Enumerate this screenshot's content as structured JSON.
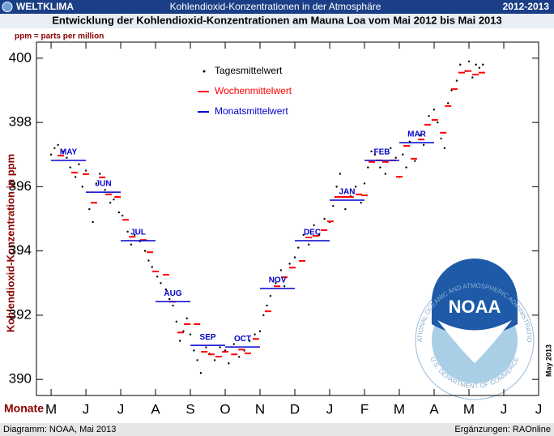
{
  "header": {
    "left": "WELTKLIMA",
    "center": "Kohlendioxid-Konzentrationen in der Atmosphäre",
    "right": "2012-2013"
  },
  "chart_data": {
    "type": "scatter",
    "title": "Entwicklung der Kohlendioxid-Konzentrationen am Mauna Loa vom Mai 2012 bis Mai 2013",
    "subtitle": "ppm = parts per million",
    "y_label": "Kohlendioxid-Konzentration in ppm",
    "x_label": "Monate",
    "note": "May 2013",
    "xlim": [
      -0.42,
      14.0
    ],
    "xticks": [
      {
        "value": 0,
        "label": "M"
      },
      {
        "value": 1,
        "label": "J"
      },
      {
        "value": 2,
        "label": "J"
      },
      {
        "value": 3,
        "label": "A"
      },
      {
        "value": 4,
        "label": "S"
      },
      {
        "value": 5,
        "label": "O"
      },
      {
        "value": 6,
        "label": "N"
      },
      {
        "value": 7,
        "label": "D"
      },
      {
        "value": 8,
        "label": "J"
      },
      {
        "value": 9,
        "label": "F"
      },
      {
        "value": 10,
        "label": "M"
      },
      {
        "value": 11,
        "label": "A"
      },
      {
        "value": 12,
        "label": "M"
      },
      {
        "value": 13,
        "label": "J"
      },
      {
        "value": 14,
        "label": "J"
      }
    ],
    "ylim": [
      389.5,
      400.5
    ],
    "yticks": [
      390,
      392,
      394,
      396,
      398,
      400
    ],
    "series": [
      {
        "name": "Tagesmittelwert",
        "color": "#000000",
        "style": "dot",
        "x": [
          0.0,
          0.1,
          0.2,
          0.35,
          0.45,
          0.55,
          0.7,
          0.8,
          0.9,
          1.0,
          1.1,
          1.2,
          1.3,
          1.4,
          1.55,
          1.7,
          1.8,
          1.95,
          2.05,
          2.2,
          2.3,
          2.4,
          2.55,
          2.7,
          2.8,
          2.9,
          3.05,
          3.15,
          3.3,
          3.4,
          3.5,
          3.6,
          3.7,
          3.8,
          3.9,
          4.0,
          4.1,
          4.2,
          4.3,
          4.45,
          4.55,
          4.7,
          4.85,
          5.0,
          5.1,
          5.25,
          5.4,
          5.55,
          5.7,
          5.85,
          6.0,
          6.1,
          6.2,
          6.3,
          6.45,
          6.6,
          6.7,
          6.85,
          7.0,
          7.1,
          7.25,
          7.4,
          7.55,
          7.7,
          7.85,
          8.0,
          8.1,
          8.2,
          8.3,
          8.45,
          8.6,
          8.75,
          8.9,
          9.0,
          9.1,
          9.2,
          9.3,
          9.45,
          9.6,
          9.75,
          9.9,
          10.0,
          10.1,
          10.2,
          10.3,
          10.45,
          10.6,
          10.7,
          10.85,
          11.0,
          11.1,
          11.2,
          11.3,
          11.4,
          11.5,
          11.65,
          11.75,
          11.9,
          12.0,
          12.1,
          12.2,
          12.3,
          12.4
        ],
        "values": [
          397.0,
          397.2,
          397.3,
          397.1,
          396.9,
          396.6,
          396.3,
          396.7,
          396.0,
          396.5,
          395.3,
          394.9,
          396.1,
          396.4,
          395.9,
          395.5,
          395.6,
          395.2,
          395.1,
          394.6,
          394.2,
          394.5,
          394.3,
          394.0,
          393.7,
          393.5,
          393.2,
          393.0,
          392.8,
          392.5,
          392.3,
          391.8,
          391.2,
          391.5,
          391.9,
          391.4,
          390.9,
          390.6,
          390.2,
          391.0,
          390.8,
          390.6,
          391.0,
          390.9,
          390.5,
          391.1,
          390.7,
          390.9,
          391.2,
          391.4,
          391.5,
          392.0,
          392.3,
          392.6,
          393.0,
          393.4,
          392.9,
          393.6,
          393.8,
          394.1,
          394.5,
          394.2,
          394.8,
          394.5,
          395.0,
          394.9,
          395.4,
          396.0,
          396.4,
          395.3,
          395.7,
          396.0,
          395.5,
          396.1,
          396.6,
          397.1,
          397.0,
          396.6,
          396.4,
          397.2,
          396.9,
          396.3,
          397.0,
          396.6,
          397.4,
          396.8,
          397.6,
          397.3,
          398.2,
          398.4,
          398.0,
          397.5,
          397.2,
          398.6,
          399.0,
          399.3,
          399.8,
          399.6,
          399.9,
          399.4,
          399.8,
          399.7,
          399.8
        ]
      },
      {
        "name": "Wochenmittelwert",
        "color": "#ff0000",
        "style": "dash",
        "x": [
          0.28,
          0.67,
          1.0,
          1.23,
          1.47,
          1.65,
          1.91,
          2.14,
          2.33,
          2.65,
          2.84,
          3.0,
          3.3,
          3.49,
          3.72,
          3.91,
          4.19,
          4.4,
          4.6,
          4.81,
          5.0,
          5.26,
          5.47,
          5.65,
          5.88,
          6.23,
          6.49,
          6.7,
          6.93,
          7.21,
          7.4,
          7.6,
          7.84,
          8.02,
          8.23,
          8.42,
          8.6,
          8.84,
          9.0,
          9.21,
          9.42,
          9.6,
          9.81,
          10.0,
          10.21,
          10.42,
          10.63,
          10.81,
          11.02,
          11.26,
          11.4,
          11.58,
          11.79,
          11.98,
          12.19,
          12.37
        ],
        "values": [
          396.97,
          396.44,
          396.39,
          395.5,
          396.29,
          395.76,
          395.68,
          394.97,
          394.44,
          394.34,
          393.96,
          393.36,
          393.26,
          392.42,
          391.46,
          391.72,
          391.72,
          390.86,
          390.78,
          390.71,
          390.86,
          390.78,
          390.93,
          390.81,
          391.26,
          392.12,
          392.9,
          393.18,
          393.48,
          393.69,
          394.42,
          394.47,
          394.65,
          394.92,
          395.68,
          395.68,
          395.68,
          395.76,
          395.73,
          396.77,
          396.82,
          396.77,
          396.82,
          396.31,
          397.27,
          396.87,
          397.47,
          397.93,
          398.08,
          397.68,
          398.51,
          399.04,
          399.55,
          399.6,
          399.49,
          399.55
        ]
      },
      {
        "name": "Monatsmittelwert",
        "color": "#0000cc",
        "style": "month",
        "x": [
          0,
          1,
          2,
          3,
          4,
          5,
          6,
          7,
          8,
          9,
          10
        ],
        "labels": [
          "MAY",
          "JUN",
          "JUL",
          "AUG",
          "SEP",
          "OCT",
          "NOV",
          "DEC",
          "JAN",
          "FEB",
          "MAR"
        ],
        "values": [
          396.82,
          395.83,
          394.32,
          392.42,
          391.06,
          391.01,
          392.83,
          394.32,
          395.58,
          396.82,
          397.37
        ]
      }
    ]
  },
  "logo": {
    "name": "NOAA",
    "ring_top": "NATIONAL OCEANIC AND ATMOSPHERIC ADMINISTRATION",
    "ring_bottom": "U.S. DEPARTMENT OF COMMERCE"
  },
  "footer": {
    "left": "Diagramm: NOAA,  Mai 2013",
    "right": "Ergänzungen: RAOnline"
  }
}
